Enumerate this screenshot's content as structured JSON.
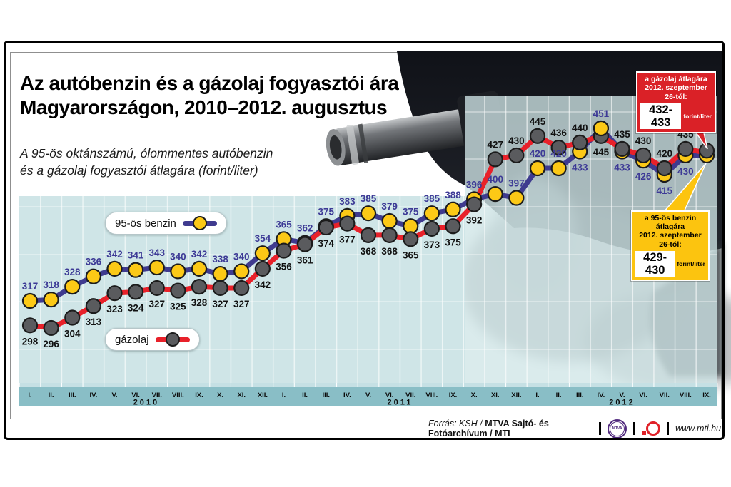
{
  "title": {
    "line1": "Az autóbenzin és a gázolaj fogyasztói ára",
    "line2": "Magyarországon, 2010–2012. augusztus"
  },
  "subtitle": {
    "line1": "A 95-ös oktánszámú, ólommentes autóbenzin",
    "line2": "és a gázolaj fogyasztói átlagára (forint/liter)"
  },
  "legend": {
    "benzin": "95-ös benzin",
    "gazolaj": "gázolaj"
  },
  "callouts": {
    "gazolaj": {
      "line1": "a gázolaj átlagára",
      "line2": "2012. szeptember 26-tól:",
      "value": "432-433",
      "unit": "forint/liter",
      "bg": "#da2127"
    },
    "benzin": {
      "line1": "a 95-ös benzin átlagára",
      "line2": "2012. szeptember 26-tól:",
      "value": "429-430",
      "unit": "forint/liter",
      "bg": "#fcc40f"
    }
  },
  "footer": {
    "source_prefix": "Forrás: KSH /",
    "source_bold": "MTVA Sajtó- és Fotóarchívum",
    "source_suffix": "/ MTI",
    "mtva_badge": "MTVA",
    "url": "www.mti.hu"
  },
  "colors": {
    "chart_bg": "#cfe5e7",
    "axis_band": "#89bec6",
    "tick_strip": "#c5e0e4",
    "benzin_line": "#3f3b8f",
    "benzin_marker": "#fcc916",
    "gazolaj_line": "#e8212a",
    "gazolaj_marker": "#5a5b5e",
    "callout_red": "#da2127",
    "callout_yellow": "#fcc40f"
  },
  "chart_data": {
    "type": "line",
    "unit": "forint/liter",
    "x_groups": [
      {
        "year": "2010",
        "months": [
          "I.",
          "II.",
          "III.",
          "IV.",
          "V.",
          "VI.",
          "VII.",
          "VIII.",
          "IX.",
          "X.",
          "XI.",
          "XII."
        ]
      },
      {
        "year": "2011",
        "months": [
          "I.",
          "II.",
          "III.",
          "IV.",
          "V.",
          "VI.",
          "VII.",
          "VIII.",
          "IX.",
          "X.",
          "XI.",
          "XII."
        ]
      },
      {
        "year": "2012",
        "months": [
          "I.",
          "II.",
          "III.",
          "IV.",
          "V.",
          "VI.",
          "VII.",
          "VIII.",
          "IX."
        ]
      }
    ],
    "series": [
      {
        "name": "95-ös benzin",
        "line_color": "#3f3b8f",
        "marker_color": "#fcc916",
        "label_color": "#3d3a96",
        "values": [
          317,
          318,
          328,
          336,
          342,
          341,
          343,
          340,
          342,
          338,
          340,
          354,
          365,
          362,
          375,
          383,
          385,
          379,
          375,
          385,
          388,
          396,
          400,
          397,
          420,
          420,
          433,
          451,
          433,
          426,
          415,
          430,
          430
        ]
      },
      {
        "name": "gázolaj",
        "line_color": "#e8212a",
        "marker_color": "#5a5b5e",
        "label_color": "#111111",
        "values": [
          298,
          296,
          304,
          313,
          323,
          324,
          327,
          325,
          328,
          327,
          327,
          342,
          356,
          361,
          374,
          377,
          368,
          368,
          365,
          373,
          375,
          392,
          427,
          430,
          445,
          436,
          440,
          445,
          435,
          430,
          420,
          435,
          432
        ]
      }
    ],
    "last_point_unlabeled": true,
    "final_values_from_callouts": {
      "benzin": "429-430",
      "gazolaj": "432-433"
    },
    "ylim_estimate": [
      280,
      465
    ],
    "grid": true,
    "legend_position": "inside-left"
  }
}
